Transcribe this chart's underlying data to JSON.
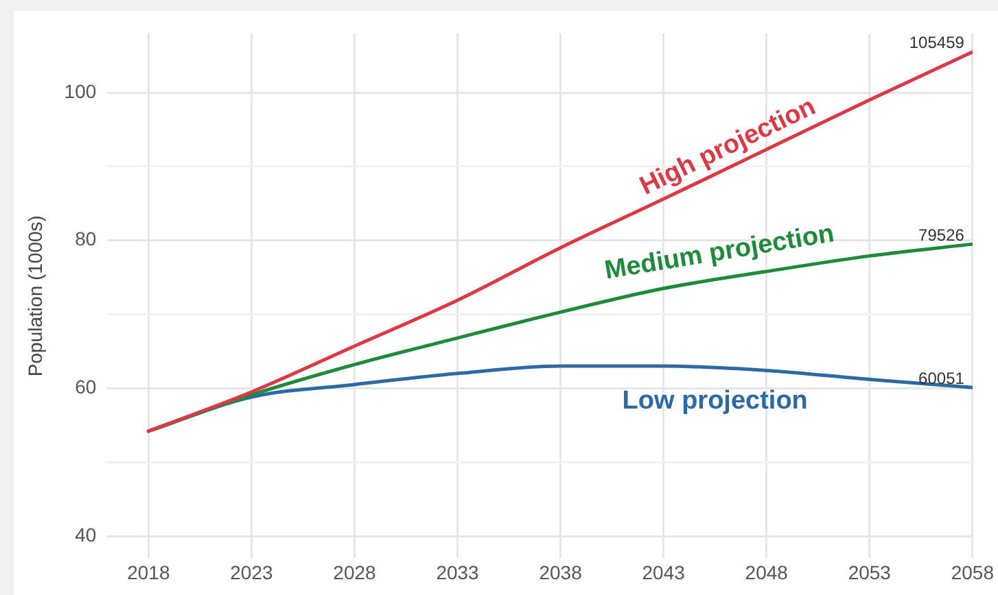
{
  "chart_data": {
    "type": "line",
    "ylabel": "Population (1000s)",
    "x": [
      2018,
      2023,
      2028,
      2033,
      2038,
      2043,
      2048,
      2053,
      2058
    ],
    "series": [
      {
        "name": "High projection",
        "color": "#d93a45",
        "values": [
          54.2,
          59.5,
          65.7,
          71.9,
          79.0,
          85.6,
          92.3,
          99.0,
          105.5
        ]
      },
      {
        "name": "Medium projection",
        "color": "#1f8a3c",
        "values": [
          54.2,
          59.1,
          63.2,
          66.8,
          70.3,
          73.5,
          75.8,
          77.9,
          79.5
        ]
      },
      {
        "name": "Low projection",
        "color": "#2d6aa3",
        "values": [
          54.2,
          58.8,
          60.5,
          62.0,
          63.0,
          63.0,
          62.4,
          61.2,
          60.1
        ]
      }
    ],
    "annotations": [
      "105459",
      "79526",
      "60051"
    ],
    "xlim": [
      2016,
      2058
    ],
    "xticks": [
      2018,
      2023,
      2028,
      2033,
      2038,
      2043,
      2048,
      2053,
      2058
    ],
    "ylim": [
      37,
      108
    ],
    "yticks": [
      {
        "value": 40,
        "label": "40"
      },
      {
        "value": 50,
        "label": null
      },
      {
        "value": 60,
        "label": "60"
      },
      {
        "value": 70,
        "label": null
      },
      {
        "value": 80,
        "label": "80"
      },
      {
        "value": 90,
        "label": null
      },
      {
        "value": 100,
        "label": "100"
      }
    ],
    "grid": true,
    "legend": false,
    "marker": "none",
    "line_style": "solid"
  }
}
